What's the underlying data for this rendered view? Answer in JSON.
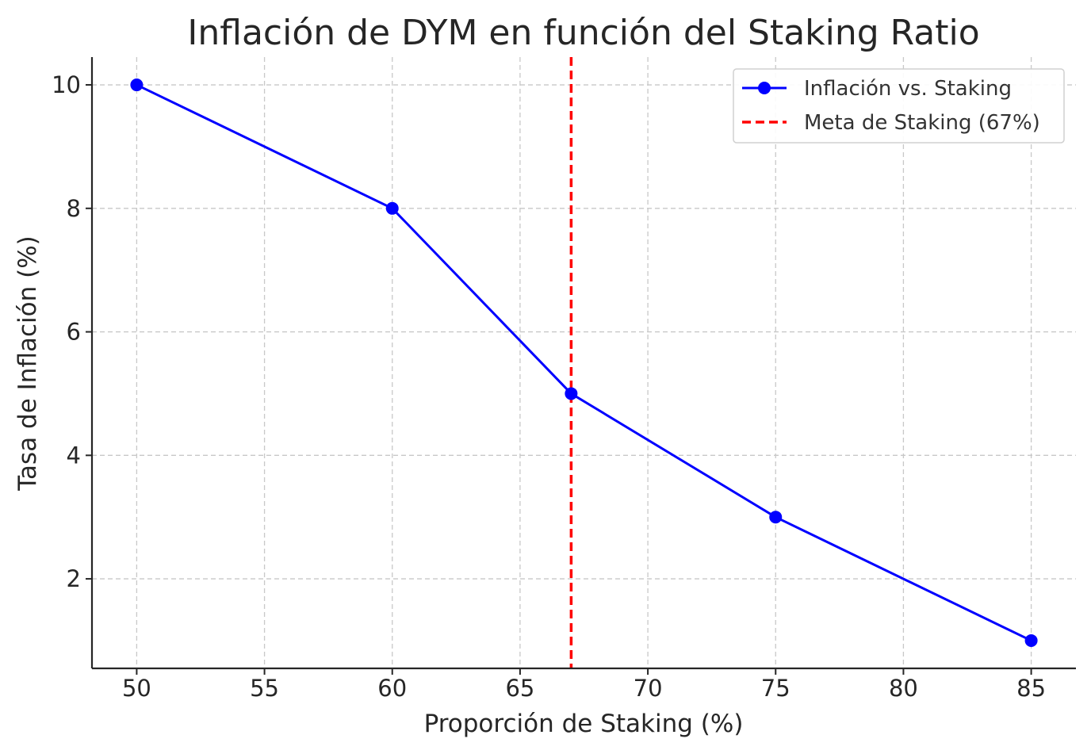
{
  "chart_data": {
    "type": "line",
    "title": "Inflación de DYM en función del Staking Ratio",
    "xlabel": "Proporción de Staking (%)",
    "ylabel": "Tasa de Inflación (%)",
    "xlim": [
      48.25,
      86.75
    ],
    "ylim": [
      0.55,
      10.45
    ],
    "xticks": [
      50,
      55,
      60,
      65,
      70,
      75,
      80,
      85
    ],
    "yticks": [
      2,
      4,
      6,
      8,
      10
    ],
    "grid": true,
    "legend_position": "top-right",
    "series": [
      {
        "name": "Inflación vs. Staking",
        "color": "#0000ff",
        "marker": "circle",
        "x": [
          50,
          60,
          67,
          75,
          85
        ],
        "y": [
          10,
          8,
          5,
          3,
          1
        ]
      }
    ],
    "reference_lines": [
      {
        "name": "Meta de Staking (67%)",
        "orientation": "vertical",
        "x": 67,
        "color": "#ff0000",
        "style": "dashed"
      }
    ]
  }
}
